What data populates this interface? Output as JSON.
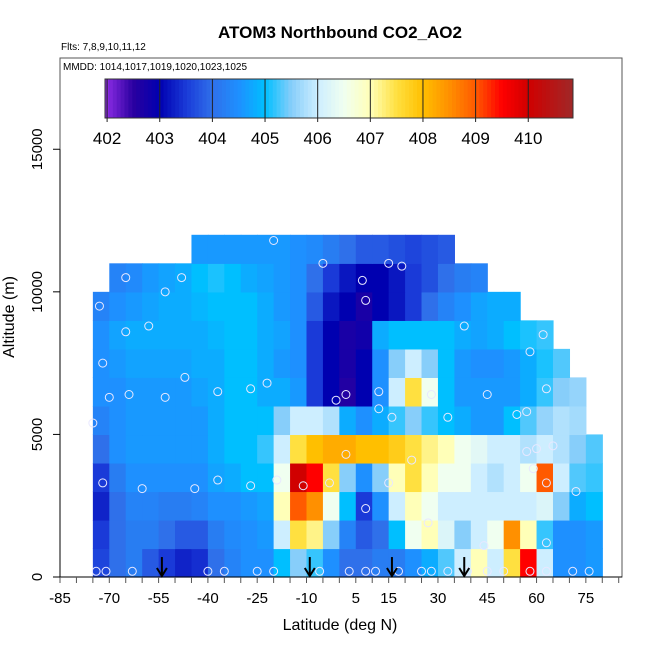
{
  "chart_data": {
    "type": "heatmap",
    "title": "ATOM3 Northbound CO2_AO2",
    "subtitle_flights": "Flts: 7,8,9,10,11,12",
    "annotation_dates": "MMDD: 1014,1017,1019,1020,1023,1025",
    "xlabel": "Latitude (deg N)",
    "ylabel": "Altitude (m)",
    "xlim": [
      -85,
      86
    ],
    "ylim": [
      0,
      18200
    ],
    "x_ticks": [
      -85,
      -70,
      -55,
      -40,
      -25,
      -10,
      5,
      15,
      30,
      45,
      60,
      75
    ],
    "x_tick_labels": [
      "-85",
      "-70",
      "-55",
      "-40",
      "-25",
      "-10",
      "5",
      "15",
      "30",
      "45",
      "60",
      "75"
    ],
    "x_minor_tick_step": 5,
    "y_ticks": [
      0,
      5000,
      10000,
      15000
    ],
    "y_tick_labels": [
      "0",
      "5000",
      "10000",
      "15000"
    ],
    "colorbar": {
      "range": [
        401.96,
        410.85
      ],
      "ticks": [
        402,
        403,
        404,
        405,
        406,
        407,
        408,
        409,
        410
      ],
      "tick_labels": [
        "402",
        "403",
        "404",
        "405",
        "406",
        "407",
        "408",
        "409",
        "410"
      ],
      "placement": "top-inside",
      "stops": [
        [
          402.0,
          "#8a2be2"
        ],
        [
          402.5,
          "#2a00a0"
        ],
        [
          403.0,
          "#0000b0"
        ],
        [
          403.5,
          "#1a3ad8"
        ],
        [
          404.0,
          "#2f70ea"
        ],
        [
          404.5,
          "#1e90ff"
        ],
        [
          405.0,
          "#00bfff"
        ],
        [
          405.5,
          "#87cefa"
        ],
        [
          406.0,
          "#cdeeff"
        ],
        [
          406.5,
          "#f0fff0"
        ],
        [
          407.0,
          "#ffffb8"
        ],
        [
          407.5,
          "#ffe040"
        ],
        [
          408.0,
          "#ffbf00"
        ],
        [
          408.5,
          "#ff9000"
        ],
        [
          409.0,
          "#ff5a00"
        ],
        [
          409.5,
          "#ff0000"
        ],
        [
          410.0,
          "#d00000"
        ],
        [
          410.85,
          "#a02828"
        ]
      ]
    },
    "grid_lat_centers": [
      -72.5,
      -67.5,
      -62.5,
      -57.5,
      -52.5,
      -47.5,
      -42.5,
      -37.5,
      -32.5,
      -27.5,
      -22.5,
      -17.5,
      -12.5,
      -7.5,
      -2.5,
      2.5,
      7.5,
      12.5,
      17.5,
      22.5,
      27.5,
      32.5,
      37.5,
      42.5,
      47.5,
      52.5,
      57.5,
      62.5,
      67.5,
      72.5,
      77.5
    ],
    "grid_lat_width": 5,
    "grid_alt_bottoms": [
      0,
      1000,
      2000,
      3000,
      4000,
      5000,
      6000,
      7000,
      8000,
      9000,
      10000,
      11000
    ],
    "grid_alt_height": 1000,
    "values": [
      [
        403.6,
        404,
        404.2,
        403.8,
        403.5,
        403.3,
        403.4,
        404,
        404.3,
        404.5,
        404.5,
        405,
        405.5,
        405.2,
        404.5,
        404,
        404,
        404.2,
        404.2,
        404.5,
        404.8,
        405.3,
        406,
        407,
        406,
        407.5,
        409.5,
        406,
        404.5,
        404.5,
        404.6
      ],
      [
        403.5,
        404,
        404.2,
        404.2,
        404,
        403.8,
        403.8,
        404.2,
        404.4,
        404.5,
        404.6,
        406,
        407.5,
        407.2,
        405.5,
        404.3,
        403.8,
        404,
        405,
        406.5,
        407,
        406.2,
        405.5,
        406,
        406.5,
        408.5,
        407,
        405.2,
        404.5,
        404.5,
        404.6
      ],
      [
        403.3,
        404,
        404.3,
        404.3,
        404.2,
        404.2,
        404.3,
        404.5,
        404.5,
        404.6,
        404.7,
        407,
        409,
        408.5,
        406.5,
        405,
        403.5,
        404.5,
        406,
        407,
        406.5,
        406,
        406,
        406,
        406,
        406,
        406,
        406.2,
        405.5,
        404.8,
        405
      ],
      [
        403.5,
        404.2,
        404.5,
        404.5,
        404.5,
        404.5,
        404.5,
        404.7,
        404.8,
        405,
        405,
        406.5,
        410,
        409.5,
        407.5,
        405.5,
        404.5,
        405.5,
        407,
        407.5,
        407,
        406.5,
        406.5,
        406,
        405.8,
        406,
        406.5,
        409,
        406,
        405.3,
        405.2
      ],
      [
        404,
        404.5,
        404.6,
        404.6,
        404.6,
        404.6,
        404.6,
        404.8,
        405,
        405,
        405.2,
        406,
        407.5,
        408,
        408.2,
        408.2,
        408,
        408,
        407.8,
        407.5,
        407.2,
        407,
        406.5,
        406.3,
        406,
        406,
        405.8,
        406,
        405.8,
        405.5,
        405.3
      ],
      [
        404.3,
        404.5,
        404.6,
        404.6,
        404.6,
        404.6,
        404.6,
        404.8,
        405,
        405,
        405,
        405.5,
        406,
        406,
        405.8,
        404.8,
        404.5,
        404.8,
        405.2,
        405.5,
        405.2,
        405,
        404.8,
        404.6,
        404.6,
        405,
        405.3,
        405.6,
        405.8,
        405.7,
        null
      ],
      [
        404.5,
        404.5,
        404.6,
        404.6,
        404.6,
        404.6,
        404.7,
        404.8,
        405,
        405,
        404.8,
        404.8,
        404.6,
        403.5,
        403,
        402.6,
        403,
        404.5,
        406,
        407.5,
        406.5,
        405,
        404.6,
        404.6,
        404.6,
        404.6,
        404.8,
        405.2,
        405.5,
        405.6,
        null
      ],
      [
        404.5,
        404.6,
        404.7,
        404.7,
        404.7,
        404.7,
        404.8,
        404.8,
        405,
        405,
        404.8,
        404.6,
        404.5,
        403.5,
        403,
        402.7,
        403,
        404.5,
        405.5,
        406,
        405.5,
        405,
        404.6,
        404.5,
        404.5,
        404.6,
        404.8,
        405.1,
        405.3,
        null,
        null
      ],
      [
        404.5,
        404.7,
        404.8,
        404.8,
        404.8,
        404.8,
        404.8,
        404.9,
        405,
        405,
        404.8,
        404.7,
        404.5,
        403.5,
        403,
        402.7,
        402.8,
        404.8,
        405,
        405,
        405,
        405,
        404.8,
        404.7,
        404.8,
        405,
        405.1,
        405.2,
        null,
        null,
        null
      ],
      [
        404.3,
        404.5,
        404.6,
        404.7,
        404.8,
        404.8,
        404.9,
        405,
        405,
        405,
        404.8,
        404.6,
        404.5,
        403.8,
        403.2,
        403,
        402.7,
        403,
        403.2,
        403.5,
        404,
        404.3,
        404.5,
        404.7,
        404.8,
        404.8,
        null,
        null,
        null,
        null,
        null
      ],
      [
        null,
        404.3,
        404.4,
        404.6,
        404.7,
        404.8,
        405,
        405.1,
        405,
        404.8,
        404.7,
        404.6,
        404.5,
        404,
        403.5,
        403.2,
        403,
        403,
        403.2,
        403.5,
        403.7,
        404,
        404.2,
        404.3,
        null,
        null,
        null,
        null,
        null,
        null,
        null
      ],
      [
        null,
        null,
        null,
        null,
        null,
        null,
        404.6,
        404.6,
        404.6,
        404.6,
        404.6,
        404.6,
        404.5,
        404.4,
        404.2,
        404,
        403.8,
        403.8,
        403.7,
        403.6,
        403.7,
        403.8,
        null,
        null,
        null,
        null,
        null,
        null,
        null,
        null,
        null
      ]
    ],
    "sample_points": [
      [
        -74,
        200
      ],
      [
        -71,
        200
      ],
      [
        -63,
        200
      ],
      [
        -40,
        200
      ],
      [
        -35,
        200
      ],
      [
        -25,
        200
      ],
      [
        -20,
        200
      ],
      [
        -6,
        200
      ],
      [
        3,
        200
      ],
      [
        8,
        200
      ],
      [
        11,
        200
      ],
      [
        18,
        200
      ],
      [
        25,
        200
      ],
      [
        28,
        200
      ],
      [
        33,
        200
      ],
      [
        39,
        200
      ],
      [
        45,
        200
      ],
      [
        50,
        200
      ],
      [
        58,
        200
      ],
      [
        63,
        200
      ],
      [
        71,
        200
      ],
      [
        76,
        200
      ],
      [
        -75,
        5400
      ],
      [
        -73,
        9500
      ],
      [
        -72,
        7500
      ],
      [
        -70,
        6300
      ],
      [
        -65,
        10500
      ],
      [
        -65,
        8600
      ],
      [
        -64,
        6400
      ],
      [
        -58,
        8800
      ],
      [
        -53,
        10000
      ],
      [
        -53,
        6300
      ],
      [
        -48,
        10500
      ],
      [
        -47,
        7000
      ],
      [
        -37,
        6500
      ],
      [
        -27,
        6600
      ],
      [
        -22,
        6800
      ],
      [
        -20,
        11800
      ],
      [
        -5,
        11000
      ],
      [
        -1,
        6200
      ],
      [
        2,
        6400
      ],
      [
        7,
        10400
      ],
      [
        8,
        9700
      ],
      [
        12,
        6500
      ],
      [
        12,
        5900
      ],
      [
        15,
        11000
      ],
      [
        16,
        5600
      ],
      [
        19,
        10900
      ],
      [
        28,
        6400
      ],
      [
        33,
        5600
      ],
      [
        38,
        8800
      ],
      [
        45,
        6400
      ],
      [
        54,
        5700
      ],
      [
        57,
        5800
      ],
      [
        58,
        7900
      ],
      [
        62,
        8500
      ],
      [
        63,
        6600
      ],
      [
        57,
        4400
      ],
      [
        60,
        4500
      ],
      [
        65,
        4600
      ],
      [
        59,
        3800
      ],
      [
        63,
        3300
      ],
      [
        72,
        3000
      ],
      [
        15,
        3300
      ],
      [
        8,
        2400
      ],
      [
        22,
        4100
      ],
      [
        2,
        4300
      ],
      [
        27,
        1900
      ],
      [
        44,
        1100
      ],
      [
        63,
        1200
      ],
      [
        -11,
        3200
      ],
      [
        -37,
        3400
      ],
      [
        -44,
        3100
      ],
      [
        -60,
        3100
      ],
      [
        -72,
        3300
      ],
      [
        -27,
        3200
      ],
      [
        -19,
        3400
      ],
      [
        -3,
        3300
      ]
    ],
    "arrows_lat": [
      -54,
      -9,
      16,
      38
    ]
  }
}
